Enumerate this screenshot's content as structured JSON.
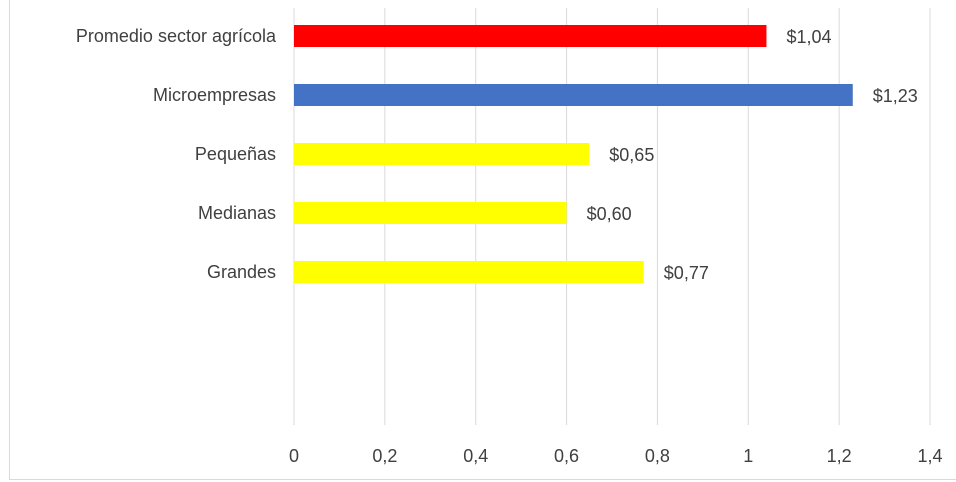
{
  "chart_data": {
    "type": "bar",
    "orientation": "horizontal",
    "categories": [
      "Promedio sector agrícola",
      "Microempresas",
      "Pequeñas",
      "Medianas",
      "Grandes"
    ],
    "values": [
      1.04,
      1.23,
      0.65,
      0.6,
      0.77
    ],
    "data_labels": [
      "$1,04",
      "$1,23",
      "$0,65",
      "$0,60",
      "$0,77"
    ],
    "bar_colors": [
      "#ff0000",
      "#4472c4",
      "#ffff00",
      "#ffff00",
      "#ffff00"
    ],
    "xlim": [
      0,
      1.4
    ],
    "x_ticks": [
      0,
      0.2,
      0.4,
      0.6,
      0.8,
      1,
      1.2,
      1.4
    ],
    "x_tick_labels": [
      "0",
      "0,2",
      "0,4",
      "0,6",
      "0,8",
      "1",
      "1,2",
      "1,4"
    ],
    "grid": true,
    "title": "",
    "xlabel": "",
    "ylabel": ""
  }
}
